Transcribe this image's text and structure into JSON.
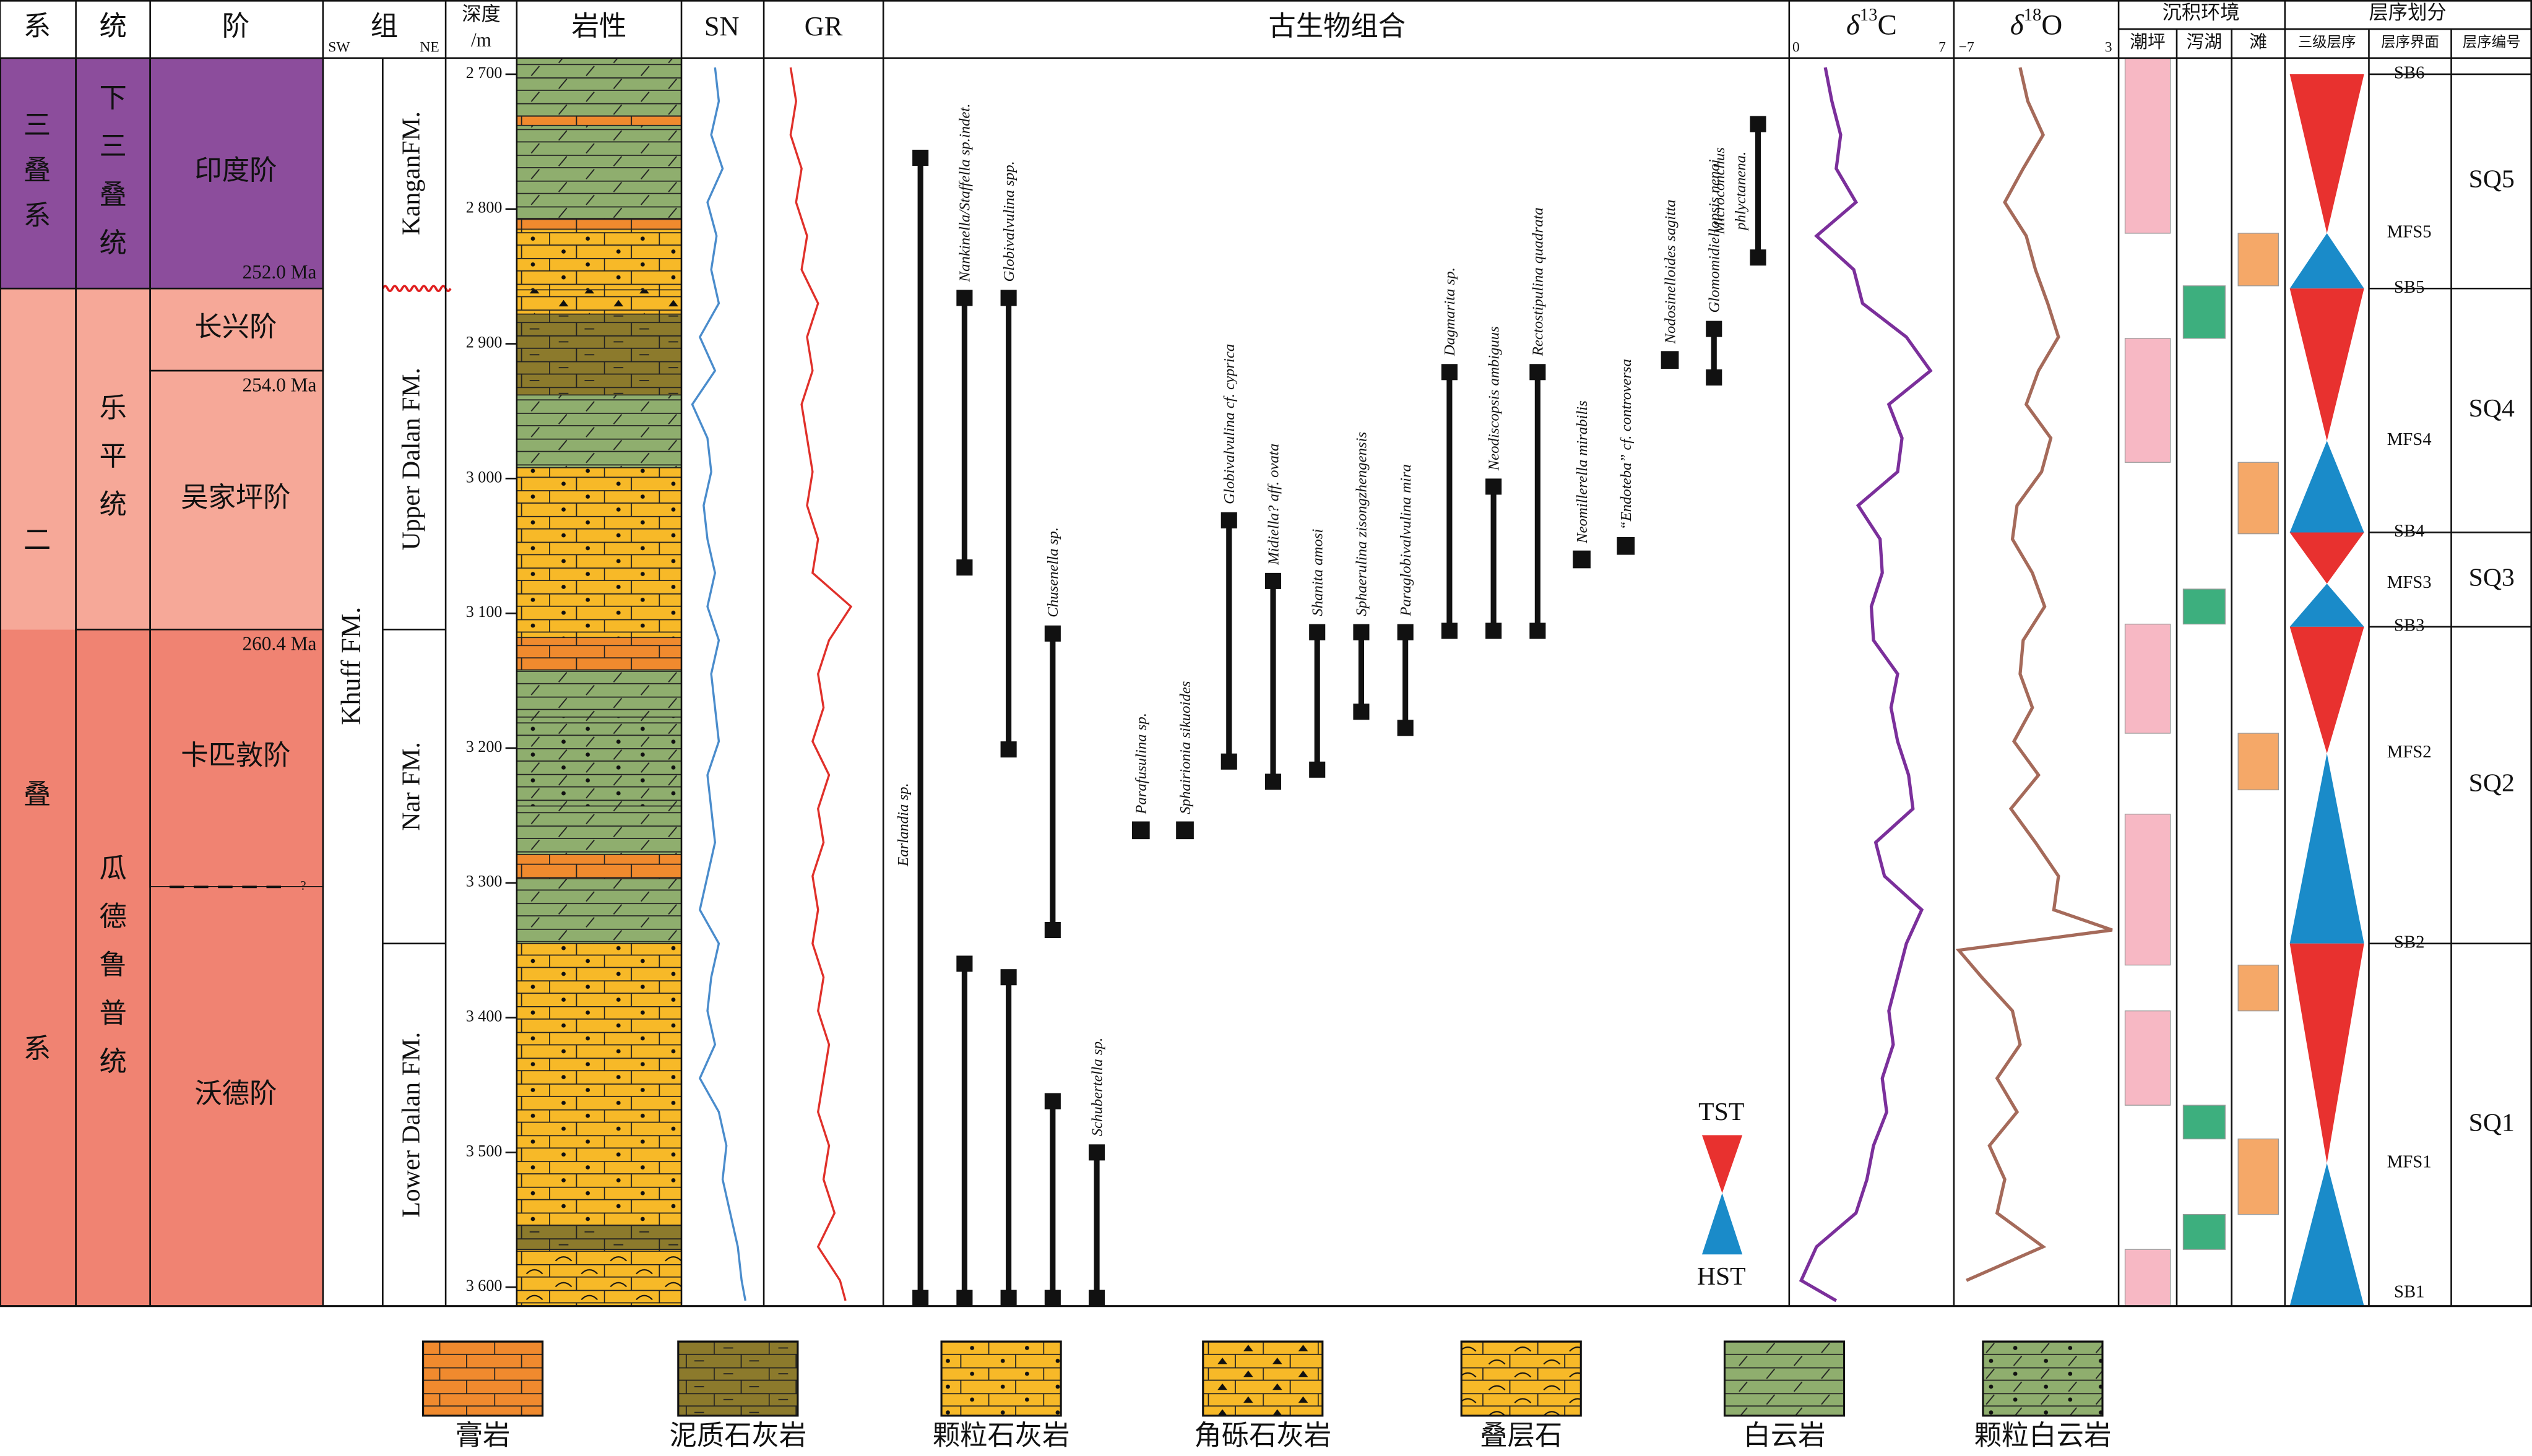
{
  "header": {
    "system": "系",
    "series": "统",
    "stage": "阶",
    "formation": "组",
    "formation_left": "SW",
    "formation_right": "NE",
    "depth": [
      "深度",
      "/m"
    ],
    "lithology": "岩性",
    "sn": "SN",
    "gr": "GR",
    "fossils": "古生物组合",
    "d13c": {
      "symbol": "δ",
      "mass": "13",
      "element": "C"
    },
    "d18o": {
      "symbol": "δ",
      "mass": "18",
      "element": "O"
    },
    "environment": "沉积环境",
    "sequence": "层序划分"
  },
  "depth_axis": {
    "lim": [
      2688,
      3614
    ],
    "ticks": [
      {
        "value": 2700,
        "label": "2 700"
      },
      {
        "value": 2800,
        "label": "2 800"
      },
      {
        "value": 2900,
        "label": "2 900"
      },
      {
        "value": 3000,
        "label": "3 000"
      },
      {
        "value": 3100,
        "label": "3 100"
      },
      {
        "value": 3200,
        "label": "3 200"
      },
      {
        "value": 3300,
        "label": "3 300"
      },
      {
        "value": 3400,
        "label": "3 400"
      },
      {
        "value": 3500,
        "label": "3 500"
      },
      {
        "value": 3600,
        "label": "3 600"
      }
    ]
  },
  "systems": [
    {
      "label": [
        "三",
        "叠",
        "系"
      ],
      "top": 2688,
      "bottom": 2859
    },
    {
      "label": [
        "二",
        "叠",
        "系"
      ],
      "top": 2859,
      "bottom": 3614
    }
  ],
  "series": [
    {
      "label": [
        "下",
        "三",
        "叠",
        "统"
      ],
      "top": 2688,
      "bottom": 2859,
      "color": "#8c4d9c"
    },
    {
      "label": [
        "乐",
        "平",
        "统"
      ],
      "top": 2859,
      "bottom": 3112,
      "color": "#f6a898"
    },
    {
      "label": [
        "瓜",
        "德",
        "鲁",
        "普",
        "统"
      ],
      "top": 3112,
      "bottom": 3614,
      "color": "#f08372"
    }
  ],
  "stages": [
    {
      "name": "印度阶",
      "top": 2688,
      "bottom": 2859
    },
    {
      "name": "长兴阶",
      "top": 2859,
      "bottom": 2920
    },
    {
      "name": "吴家坪阶",
      "top": 2920,
      "bottom": 3112
    },
    {
      "name": "卡匹敦阶",
      "top": 3112,
      "bottom": 3303
    },
    {
      "name": "沃德阶",
      "top": 3303,
      "bottom": 3614,
      "boundary_query": "?"
    }
  ],
  "ages": [
    {
      "value": 252.0,
      "label": "252.0 Ma",
      "depth": 2859
    },
    {
      "value": 254.0,
      "label": "254.0 Ma",
      "depth": 2920
    },
    {
      "value": 260.4,
      "label": "260.4 Ma",
      "depth": 3112
    }
  ],
  "formations": {
    "group": "Khuff FM.",
    "unconformity_depth": 2859,
    "members": [
      {
        "name": "KanganFM.",
        "top": 2688,
        "bottom": 2859
      },
      {
        "name": "Upper Dalan FM.",
        "top": 2859,
        "bottom": 3112
      },
      {
        "name": "Nar FM.",
        "top": 3112,
        "bottom": 3345
      },
      {
        "name": "Lower Dalan FM.",
        "top": 3345,
        "bottom": 3614
      }
    ]
  },
  "lithology": {
    "legend": [
      {
        "label": "膏岩",
        "color": "#f08a2e"
      },
      {
        "label": "泥质石灰岩",
        "color": "#8c7a2c"
      },
      {
        "label": "颗粒石灰岩",
        "color": "#f7b928"
      },
      {
        "label": "角砾石灰岩",
        "color": "#f7b928"
      },
      {
        "label": "叠层石",
        "color": "#f7b928"
      },
      {
        "label": "白云岩",
        "color": "#8fae6e"
      },
      {
        "label": "颗粒白云岩",
        "color": "#8fae6e"
      }
    ],
    "layers": [
      {
        "type": "白云岩",
        "top": 2688,
        "bottom": 2731
      },
      {
        "type": "膏岩",
        "top": 2731,
        "bottom": 2738
      },
      {
        "type": "白云岩",
        "top": 2738,
        "bottom": 2807
      },
      {
        "type": "膏岩",
        "top": 2807,
        "bottom": 2815
      },
      {
        "type": "颗粒石灰岩",
        "top": 2815,
        "bottom": 2860
      },
      {
        "type": "角砾石灰岩",
        "top": 2860,
        "bottom": 2878
      },
      {
        "type": "泥质石灰岩",
        "top": 2878,
        "bottom": 2938
      },
      {
        "type": "白云岩",
        "top": 2938,
        "bottom": 2992
      },
      {
        "type": "颗粒石灰岩",
        "top": 2992,
        "bottom": 3118
      },
      {
        "type": "膏岩",
        "top": 3118,
        "bottom": 3142
      },
      {
        "type": "白云岩",
        "top": 3142,
        "bottom": 3177
      },
      {
        "type": "颗粒白云岩",
        "top": 3177,
        "bottom": 3243
      },
      {
        "type": "白云岩",
        "top": 3243,
        "bottom": 3279
      },
      {
        "type": "膏岩",
        "top": 3279,
        "bottom": 3297
      },
      {
        "type": "白云岩",
        "top": 3297,
        "bottom": 3345
      },
      {
        "type": "颗粒石灰岩",
        "top": 3345,
        "bottom": 3554
      },
      {
        "type": "泥质石灰岩",
        "top": 3554,
        "bottom": 3572
      },
      {
        "type": "叠层石",
        "top": 3572,
        "bottom": 3614
      }
    ]
  },
  "logs": {
    "sn": {
      "color": "#4a8ccc",
      "depths": [
        2695,
        2720,
        2745,
        2770,
        2795,
        2820,
        2845,
        2870,
        2895,
        2920,
        2945,
        2970,
        2995,
        3020,
        3045,
        3070,
        3095,
        3120,
        3145,
        3170,
        3195,
        3220,
        3245,
        3270,
        3295,
        3320,
        3345,
        3370,
        3395,
        3420,
        3445,
        3470,
        3495,
        3520,
        3545,
        3570,
        3595,
        3610
      ],
      "values": [
        40,
        45,
        35,
        50,
        30,
        42,
        35,
        45,
        20,
        40,
        10,
        30,
        35,
        25,
        30,
        40,
        30,
        45,
        35,
        40,
        45,
        30,
        35,
        40,
        30,
        20,
        45,
        35,
        30,
        40,
        20,
        45,
        55,
        50,
        60,
        70,
        75,
        80
      ]
    },
    "gr": {
      "color": "#e0302a",
      "depths": [
        2695,
        2720,
        2745,
        2770,
        2795,
        2820,
        2845,
        2870,
        2895,
        2920,
        2945,
        2970,
        2995,
        3020,
        3045,
        3070,
        3095,
        3120,
        3145,
        3170,
        3195,
        3220,
        3245,
        3270,
        3295,
        3320,
        3345,
        3370,
        3395,
        3420,
        3445,
        3470,
        3495,
        3520,
        3545,
        3570,
        3595,
        3610
      ],
      "values": [
        20,
        25,
        20,
        30,
        25,
        35,
        30,
        45,
        35,
        40,
        30,
        35,
        40,
        35,
        45,
        40,
        75,
        55,
        45,
        50,
        40,
        55,
        45,
        50,
        40,
        45,
        40,
        50,
        45,
        55,
        50,
        45,
        55,
        50,
        60,
        45,
        65,
        70
      ]
    },
    "d13c": {
      "color": "#7b2f9b",
      "lim": [
        0,
        7
      ],
      "ticks": [
        0,
        7
      ],
      "depths": [
        2695,
        2720,
        2745,
        2770,
        2795,
        2820,
        2845,
        2870,
        2895,
        2920,
        2945,
        2970,
        2995,
        3020,
        3045,
        3070,
        3095,
        3120,
        3145,
        3170,
        3195,
        3220,
        3245,
        3270,
        3295,
        3320,
        3345,
        3370,
        3395,
        3420,
        3445,
        3470,
        3495,
        3520,
        3545,
        3570,
        3595,
        3610
      ],
      "values": [
        1.5,
        1.8,
        2.2,
        2.0,
        2.9,
        1.1,
        2.8,
        3.2,
        5.2,
        6.3,
        4.4,
        5.0,
        4.8,
        3.0,
        4.0,
        4.1,
        3.6,
        3.7,
        4.8,
        4.5,
        4.8,
        5.3,
        5.5,
        3.8,
        4.2,
        5.9,
        5.2,
        4.8,
        4.4,
        4.6,
        4.1,
        4.3,
        3.7,
        3.4,
        2.9,
        1.1,
        0.4,
        2.0
      ]
    },
    "d18o": {
      "color": "#a56a5a",
      "lim": [
        -7,
        3
      ],
      "ticks": [
        {
          "value": -7,
          "label": "−7"
        },
        3
      ],
      "depths": [
        2695,
        2720,
        2745,
        2770,
        2795,
        2820,
        2845,
        2870,
        2895,
        2920,
        2945,
        2970,
        2995,
        3020,
        3045,
        3070,
        3095,
        3120,
        3145,
        3170,
        3195,
        3220,
        3245,
        3270,
        3295,
        3320,
        3335,
        3350,
        3370,
        3395,
        3420,
        3445,
        3470,
        3495,
        3520,
        3545,
        3570,
        3595
      ],
      "values": [
        -3.0,
        -2.5,
        -1.5,
        -2.8,
        -4.0,
        -2.6,
        -2.0,
        -1.2,
        -0.5,
        -1.8,
        -2.6,
        -1.0,
        -1.6,
        -3.2,
        -3.5,
        -2.2,
        -1.4,
        -2.8,
        -3.0,
        -2.2,
        -3.4,
        -1.8,
        -3.6,
        -2.0,
        -0.5,
        -0.8,
        3.0,
        -7.0,
        -5.5,
        -3.5,
        -3.0,
        -4.5,
        -3.2,
        -5.0,
        -4.0,
        -4.5,
        -1.5,
        -6.5
      ]
    }
  },
  "fossils": [
    {
      "name": "Earlandia sp.",
      "ranges": [
        [
          2762,
          3608
        ]
      ]
    },
    {
      "name": "Nankinella/Staffella sp.indet.",
      "ranges": [
        [
          2866,
          3066
        ],
        [
          3360,
          3608
        ]
      ]
    },
    {
      "name": "Globivalvulina spp.",
      "ranges": [
        [
          2866,
          3201
        ],
        [
          3370,
          3608
        ]
      ]
    },
    {
      "name": "Chusenella sp.",
      "ranges": [
        [
          3115,
          3335
        ],
        [
          3462,
          3608
        ]
      ]
    },
    {
      "name": "Schubertella sp.",
      "ranges": [
        [
          3500,
          3608
        ]
      ]
    },
    {
      "name": "Parafusulina sp.",
      "point": 3261
    },
    {
      "name": "Sphairionia sikuoides",
      "point": 3261
    },
    {
      "name": "Globivalvulina cf. cyprica",
      "ranges": [
        [
          3031,
          3210
        ]
      ]
    },
    {
      "name": "Midiella? aff. ovata",
      "ranges": [
        [
          3076,
          3225
        ]
      ]
    },
    {
      "name": "Shanita amosi",
      "ranges": [
        [
          3114,
          3216
        ]
      ]
    },
    {
      "name": "Sphaerulina zisongzhengensis",
      "ranges": [
        [
          3114,
          3173
        ]
      ]
    },
    {
      "name": "Paraglobivalvulina mira",
      "ranges": [
        [
          3114,
          3185
        ]
      ]
    },
    {
      "name": "Dagmarita sp.",
      "ranges": [
        [
          2921,
          3113
        ]
      ]
    },
    {
      "name": "Neodiscopsis ambiguus",
      "ranges": [
        [
          3006,
          3113
        ]
      ]
    },
    {
      "name": "Rectostipulina quadrata",
      "ranges": [
        [
          2921,
          3113
        ]
      ]
    },
    {
      "name": "Neomillerella mirabilis",
      "point": 3060
    },
    {
      "name": "“Endoteba” cf. controversa",
      "point": 3050
    },
    {
      "name": "Nodosinelloides sagitta",
      "point": 2912
    },
    {
      "name": "Glomomidiellopsis nenoi",
      "ranges": [
        [
          2889,
          2925
        ]
      ]
    },
    {
      "name": [
        "Microconchus",
        "phlyctanena."
      ],
      "ranges": [
        [
          2737,
          2836
        ]
      ]
    }
  ],
  "environment": {
    "facies": [
      {
        "label": "潮坪",
        "color": "#f7b8c4",
        "intervals": [
          [
            2688,
            2818
          ],
          [
            2896,
            2988
          ],
          [
            3108,
            3189
          ],
          [
            3249,
            3361
          ],
          [
            3395,
            3465
          ],
          [
            3572,
            3614
          ]
        ]
      },
      {
        "label": "泻湖",
        "color": "#3daf7e",
        "intervals": [
          [
            2857,
            2896
          ],
          [
            3082,
            3108
          ],
          [
            3465,
            3490
          ],
          [
            3546,
            3572
          ]
        ]
      },
      {
        "label": "滩",
        "color": "#f5a868",
        "intervals": [
          [
            2818,
            2857
          ],
          [
            2988,
            3041
          ],
          [
            3189,
            3231
          ],
          [
            3361,
            3395
          ],
          [
            3490,
            3546
          ]
        ]
      }
    ]
  },
  "sequence": {
    "columns": [
      "三级层序",
      "层序界面",
      "层序编号"
    ],
    "tst_color": "#e8312f",
    "hst_color": "#1a8bc9",
    "tst_label": "TST",
    "hst_label": "HST",
    "boundaries": [
      {
        "label": "SB6",
        "depth": 2700
      },
      {
        "label": "SB5",
        "depth": 2859
      },
      {
        "label": "SB4",
        "depth": 3040
      },
      {
        "label": "SB3",
        "depth": 3110
      },
      {
        "label": "SB2",
        "depth": 3345
      },
      {
        "label": "SB1",
        "depth": 3614
      }
    ],
    "mfs": [
      {
        "label": "MFS5",
        "depth": 2818
      },
      {
        "label": "MFS4",
        "depth": 2972
      },
      {
        "label": "MFS3",
        "depth": 3078
      },
      {
        "label": "MFS2",
        "depth": 3204
      },
      {
        "label": "MFS1",
        "depth": 3508
      }
    ],
    "sequences": [
      {
        "label": "SQ5",
        "top": 2700,
        "bottom": 2859
      },
      {
        "label": "SQ4",
        "top": 2859,
        "bottom": 3040
      },
      {
        "label": "SQ3",
        "top": 3040,
        "bottom": 3110
      },
      {
        "label": "SQ2",
        "top": 3110,
        "bottom": 3345
      },
      {
        "label": "SQ1",
        "top": 3345,
        "bottom": 3614
      }
    ]
  }
}
